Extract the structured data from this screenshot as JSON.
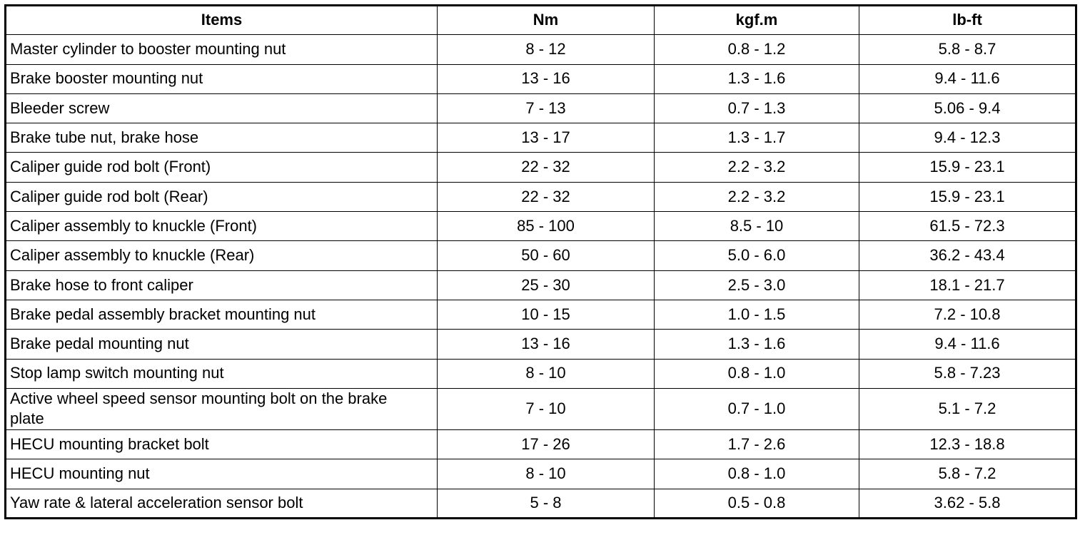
{
  "table": {
    "headers": [
      "Items",
      "Nm",
      "kgf.m",
      "lb-ft"
    ],
    "rows": [
      [
        "Master cylinder to booster mounting nut",
        "8 - 12",
        "0.8 - 1.2",
        "5.8 - 8.7"
      ],
      [
        "Brake booster mounting nut",
        "13 - 16",
        "1.3 - 1.6",
        "9.4 - 11.6"
      ],
      [
        "Bleeder screw",
        "7 - 13",
        "0.7 - 1.3",
        "5.06 - 9.4"
      ],
      [
        "Brake tube nut, brake hose",
        "13 - 17",
        "1.3 - 1.7",
        "9.4 - 12.3"
      ],
      [
        "Caliper guide rod bolt (Front)",
        "22 - 32",
        "2.2 - 3.2",
        "15.9 - 23.1"
      ],
      [
        "Caliper guide rod bolt (Rear)",
        "22 - 32",
        "2.2 - 3.2",
        "15.9 - 23.1"
      ],
      [
        "Caliper assembly to knuckle (Front)",
        "85 - 100",
        "8.5 - 10",
        "61.5 - 72.3"
      ],
      [
        "Caliper assembly to knuckle (Rear)",
        "50 - 60",
        "5.0 - 6.0",
        "36.2 - 43.4"
      ],
      [
        "Brake hose to front caliper",
        "25 - 30",
        "2.5 - 3.0",
        "18.1 - 21.7"
      ],
      [
        "Brake pedal assembly bracket mounting nut",
        "10 - 15",
        "1.0 - 1.5",
        "7.2 - 10.8"
      ],
      [
        "Brake pedal mounting nut",
        "13 - 16",
        "1.3 - 1.6",
        "9.4 - 11.6"
      ],
      [
        "Stop lamp switch mounting nut",
        "8 - 10",
        "0.8 - 1.0",
        "5.8 - 7.23"
      ],
      [
        "Active wheel speed sensor mounting bolt on the brake plate",
        "7 - 10",
        "0.7 - 1.0",
        "5.1 - 7.2"
      ],
      [
        "HECU mounting bracket bolt",
        "17 - 26",
        "1.7 - 2.6",
        "12.3 - 18.8"
      ],
      [
        "HECU mounting nut",
        "8 - 10",
        "0.8 - 1.0",
        "5.8 - 7.2"
      ],
      [
        "Yaw rate & lateral acceleration sensor bolt",
        "5 - 8",
        "0.5 - 0.8",
        "3.62 - 5.8"
      ]
    ]
  }
}
